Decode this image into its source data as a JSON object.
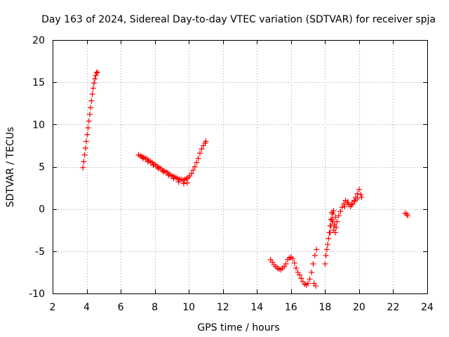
{
  "chart_data": {
    "type": "scatter",
    "title": "Day 163 of 2024, Sidereal Day-to-day VTEC variation (SDTVAR) for receiver spja",
    "xlabel": "GPS time / hours",
    "ylabel": "SDTVAR / TECUs",
    "xlim": [
      2,
      24
    ],
    "ylim": [
      -10,
      20
    ],
    "xticks": [
      "2",
      "4",
      "6",
      "8",
      "10",
      "12",
      "14",
      "16",
      "18",
      "20",
      "22",
      "24"
    ],
    "yticks": [
      "-10",
      "-5",
      "0",
      "5",
      "10",
      "15",
      "20"
    ],
    "grid": true,
    "marker": "+",
    "series_color": "#ff0000",
    "series": [
      {
        "name": "SDTVAR",
        "x": [
          3.78,
          3.83,
          3.88,
          3.93,
          3.98,
          4.03,
          4.08,
          4.13,
          4.18,
          4.23,
          4.28,
          4.33,
          4.38,
          4.43,
          4.48,
          4.53,
          4.58,
          4.63,
          7.05,
          7.15,
          7.25,
          7.35,
          7.45,
          7.55,
          7.65,
          7.75,
          7.85,
          7.95,
          8.05,
          8.15,
          8.25,
          8.35,
          8.45,
          8.55,
          8.65,
          8.75,
          8.85,
          8.95,
          9.05,
          9.15,
          9.25,
          9.35,
          9.45,
          9.55,
          9.65,
          9.75,
          9.85,
          9.95,
          10.05,
          10.15,
          10.25,
          10.35,
          10.45,
          10.55,
          10.65,
          10.75,
          10.85,
          10.95,
          11.0,
          7.3,
          7.6,
          7.9,
          8.2,
          8.5,
          8.8,
          9.1,
          9.4,
          9.7,
          9.9,
          14.8,
          14.9,
          15.0,
          15.1,
          15.2,
          15.3,
          15.4,
          15.5,
          15.6,
          15.7,
          15.8,
          15.9,
          16.0,
          16.1,
          16.2,
          16.3,
          16.4,
          16.5,
          16.6,
          16.7,
          16.8,
          16.9,
          17.0,
          17.1,
          17.2,
          17.3,
          17.4,
          17.5,
          17.35,
          17.45,
          18.0,
          18.05,
          18.1,
          18.15,
          18.2,
          18.25,
          18.3,
          18.35,
          18.4,
          18.45,
          18.5,
          18.55,
          18.6,
          18.3,
          18.35,
          18.4,
          18.45,
          18.5,
          18.55,
          18.6,
          18.65,
          18.7,
          18.8,
          18.9,
          19.0,
          19.1,
          19.2,
          19.3,
          19.4,
          19.5,
          19.6,
          19.7,
          19.8,
          19.9,
          20.0,
          20.1,
          20.15,
          19.15,
          19.35,
          19.55,
          19.75,
          19.9,
          22.7,
          22.8,
          22.85
        ],
        "y": [
          4.9,
          5.6,
          6.4,
          7.2,
          8.0,
          8.8,
          9.6,
          10.4,
          11.2,
          12.0,
          12.8,
          13.6,
          14.3,
          14.9,
          15.4,
          15.8,
          16.1,
          16.2,
          6.4,
          6.3,
          6.2,
          6.1,
          6.0,
          5.9,
          5.7,
          5.6,
          5.5,
          5.3,
          5.2,
          5.0,
          4.9,
          4.8,
          4.6,
          4.5,
          4.4,
          4.3,
          4.1,
          4.0,
          3.9,
          3.8,
          3.7,
          3.6,
          3.5,
          3.5,
          3.4,
          3.5,
          3.6,
          3.7,
          3.9,
          4.2,
          4.6,
          5.0,
          5.5,
          6.0,
          6.6,
          7.1,
          7.5,
          7.8,
          8.0,
          6.0,
          5.6,
          5.2,
          4.8,
          4.4,
          4.0,
          3.6,
          3.2,
          3.0,
          3.1,
          -6.0,
          -6.3,
          -6.6,
          -6.8,
          -7.0,
          -7.1,
          -7.2,
          -7.0,
          -6.8,
          -6.5,
          -6.0,
          -5.8,
          -5.7,
          -5.9,
          -6.4,
          -7.0,
          -7.5,
          -7.8,
          -8.2,
          -8.6,
          -8.9,
          -9.0,
          -8.8,
          -8.3,
          -7.5,
          -6.5,
          -5.5,
          -4.8,
          -8.8,
          -9.1,
          -6.5,
          -5.5,
          -4.8,
          -4.2,
          -3.5,
          -2.8,
          -2.0,
          -1.2,
          -0.4,
          -1.5,
          -2.5,
          -2.0,
          -1.0,
          -2.8,
          -2.0,
          -1.3,
          -0.6,
          -0.2,
          -1.8,
          -2.8,
          -2.2,
          -1.5,
          -0.8,
          -0.3,
          0.2,
          0.6,
          1.0,
          0.8,
          0.5,
          0.3,
          0.6,
          1.0,
          1.4,
          1.8,
          2.3,
          1.7,
          1.4,
          0.3,
          0.8,
          0.5,
          0.9,
          1.2,
          -0.5,
          -0.6,
          -0.8
        ]
      }
    ]
  }
}
